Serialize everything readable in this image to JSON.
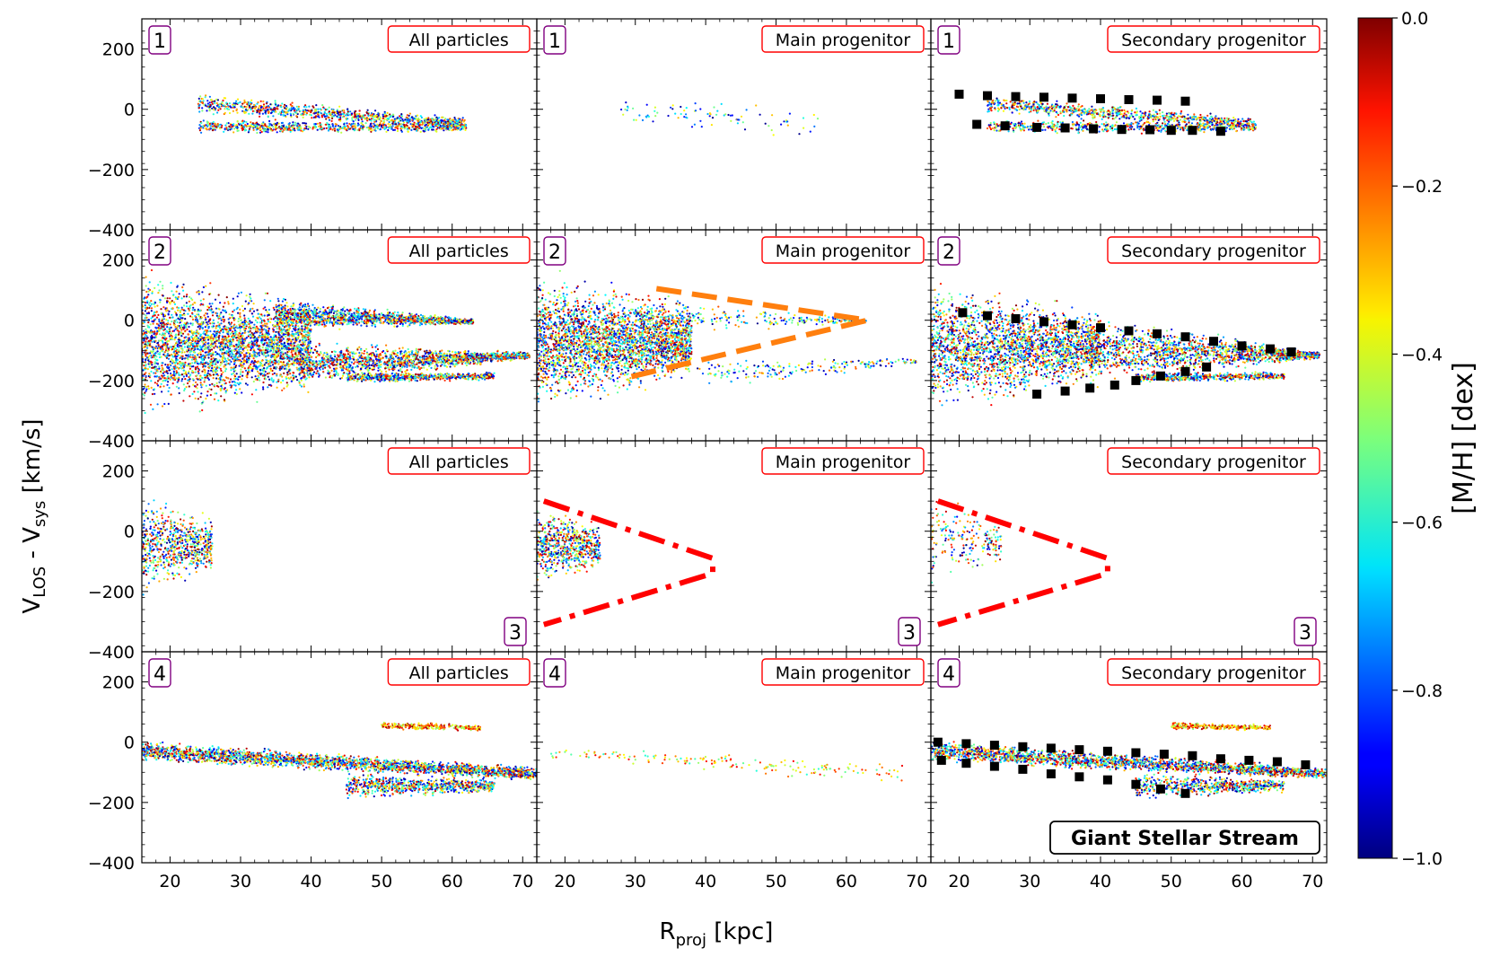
{
  "chart_data": {
    "type": "scatter",
    "figure_title": "",
    "xlabel": "R_proj [kpc]",
    "xlabel_main": "R",
    "xlabel_sub": "proj",
    "xlabel_unit": " [kpc]",
    "ylabel": "V_LOS - V_sys [km/s]",
    "ylabel_v1": "V",
    "ylabel_sub1": "LOS",
    "ylabel_mid": " - V",
    "ylabel_sub2": "sys",
    "ylabel_unit": " [km/s]",
    "xlim": [
      16,
      72
    ],
    "ylim": [
      -400,
      300
    ],
    "xticks": [
      20,
      30,
      40,
      50,
      60,
      70
    ],
    "xtick_labels": [
      "20",
      "30",
      "40",
      "50",
      "60",
      "70"
    ],
    "yticks": [
      200,
      0,
      -200,
      -400
    ],
    "ytick_labels": [
      "200",
      "0",
      "−200",
      "−400"
    ],
    "column_titles": [
      "All particles",
      "Main progenitor",
      "Secondary progenitor"
    ],
    "row_labels": [
      "1",
      "2",
      "3",
      "4"
    ],
    "annotation": "Giant Stellar Stream",
    "colorbar": {
      "label": "[M/H] [dex]",
      "range": [
        -1.0,
        0.0
      ],
      "ticks": [
        0.0,
        -0.2,
        -0.4,
        -0.6,
        -0.8,
        -1.0
      ],
      "tick_labels": [
        "0.0",
        "−0.2",
        "−0.4",
        "−0.6",
        "−0.8",
        "−1.0"
      ],
      "colormap": "jet"
    },
    "marker_colors": {
      "orange_dash": "#ff7f0e",
      "red_dashdot": "#ff0000",
      "black_squares": "#000000",
      "tag_border_number": "#800080",
      "tag_border_title": "#ff0000"
    },
    "panels": [
      {
        "row": 1,
        "col": 1,
        "title": "All particles",
        "tag": "1",
        "clouds": [
          {
            "n": 900,
            "x0": 24,
            "x1": 62,
            "yTop0": 55,
            "yTop1": -25,
            "yBot0": -20,
            "yBot1": -70,
            "mh": [
              -1,
              0
            ]
          },
          {
            "n": 700,
            "x0": 24,
            "x1": 62,
            "yTop0": -30,
            "yTop1": -40,
            "yBot0": -85,
            "yBot1": -80,
            "mh": [
              -1,
              0
            ]
          }
        ]
      },
      {
        "row": 1,
        "col": 2,
        "title": "Main progenitor",
        "tag": "1",
        "clouds": [
          {
            "n": 90,
            "x0": 28,
            "x1": 56,
            "yTop0": 40,
            "yTop1": 20,
            "yBot0": -60,
            "yBot1": -110,
            "mh": [
              -1,
              -0.3
            ]
          }
        ]
      },
      {
        "row": 1,
        "col": 3,
        "title": "Secondary progenitor",
        "tag": "1",
        "clouds": [
          {
            "n": 800,
            "x0": 24,
            "x1": 62,
            "yTop0": 55,
            "yTop1": -25,
            "yBot0": -20,
            "yBot1": -70,
            "mh": [
              -1,
              0
            ]
          },
          {
            "n": 600,
            "x0": 24,
            "x1": 62,
            "yTop0": -30,
            "yTop1": -40,
            "yBot0": -85,
            "yBot1": -80,
            "mh": [
              -1,
              0
            ]
          }
        ],
        "squares": [
          [
            20,
            50
          ],
          [
            24,
            45
          ],
          [
            28,
            42
          ],
          [
            32,
            40
          ],
          [
            36,
            37
          ],
          [
            40,
            35
          ],
          [
            44,
            32
          ],
          [
            48,
            30
          ],
          [
            52,
            27
          ],
          [
            22.5,
            -50
          ],
          [
            26.5,
            -55
          ],
          [
            31,
            -60
          ],
          [
            35,
            -62
          ],
          [
            39,
            -65
          ],
          [
            43,
            -67
          ],
          [
            47,
            -68
          ],
          [
            50,
            -70
          ],
          [
            53,
            -70
          ],
          [
            57,
            -73
          ]
        ]
      },
      {
        "row": 2,
        "col": 1,
        "title": "All particles",
        "tag": "2",
        "clouds": [
          {
            "n": 3200,
            "x0": 16,
            "x1": 40,
            "yTop0": 200,
            "yTop1": 80,
            "yBot0": -350,
            "yBot1": -260,
            "mh": [
              -1,
              0
            ]
          },
          {
            "n": 1400,
            "x0": 35,
            "x1": 63,
            "yTop0": 80,
            "yTop1": 5,
            "yBot0": -40,
            "yBot1": -15,
            "mh": [
              -1,
              0
            ]
          },
          {
            "n": 1600,
            "x0": 38,
            "x1": 71,
            "yTop0": -60,
            "yTop1": -105,
            "yBot0": -230,
            "yBot1": -130,
            "mh": [
              -1,
              0
            ]
          },
          {
            "n": 600,
            "x0": 45,
            "x1": 66,
            "yTop0": -170,
            "yTop1": -170,
            "yBot0": -210,
            "yBot1": -200,
            "mh": [
              -1,
              0
            ]
          }
        ]
      },
      {
        "row": 2,
        "col": 2,
        "title": "Main progenitor",
        "tag": "2",
        "clouds": [
          {
            "n": 3000,
            "x0": 16,
            "x1": 38,
            "yTop0": 190,
            "yTop1": 70,
            "yBot0": -340,
            "yBot1": -200,
            "mh": [
              -1,
              0
            ]
          },
          {
            "n": 250,
            "x0": 30,
            "x1": 63,
            "yTop0": 80,
            "yTop1": 5,
            "yBot0": -60,
            "yBot1": -10,
            "mh": [
              -1,
              -0.2
            ]
          },
          {
            "n": 200,
            "x0": 38,
            "x1": 70,
            "yTop0": -120,
            "yTop1": -120,
            "yBot0": -240,
            "yBot1": -150,
            "mh": [
              -1,
              -0.2
            ]
          }
        ],
        "dash_lines": [
          {
            "color": "orange",
            "pts": [
              [
                33,
                105
              ],
              [
                63,
                0
              ],
              [
                28,
                -195
              ]
            ]
          }
        ]
      },
      {
        "row": 2,
        "col": 3,
        "title": "Secondary progenitor",
        "tag": "2",
        "clouds": [
          {
            "n": 2400,
            "x0": 16,
            "x1": 40,
            "yTop0": 150,
            "yTop1": 60,
            "yBot0": -330,
            "yBot1": -240,
            "mh": [
              -1,
              0
            ]
          },
          {
            "n": 1600,
            "x0": 38,
            "x1": 71,
            "yTop0": 40,
            "yTop1": -105,
            "yBot0": -230,
            "yBot1": -130,
            "mh": [
              -1,
              0
            ]
          },
          {
            "n": 500,
            "x0": 45,
            "x1": 66,
            "yTop0": -170,
            "yTop1": -170,
            "yBot0": -210,
            "yBot1": -200,
            "mh": [
              -1,
              0
            ]
          }
        ],
        "squares": [
          [
            20.5,
            25
          ],
          [
            24,
            15
          ],
          [
            28,
            5
          ],
          [
            32,
            -5
          ],
          [
            36,
            -15
          ],
          [
            40,
            -25
          ],
          [
            44,
            -35
          ],
          [
            48,
            -45
          ],
          [
            52,
            -55
          ],
          [
            56,
            -70
          ],
          [
            60,
            -85
          ],
          [
            64,
            -95
          ],
          [
            67,
            -105
          ],
          [
            31,
            -245
          ],
          [
            35,
            -235
          ],
          [
            38.5,
            -225
          ],
          [
            42,
            -215
          ],
          [
            45,
            -200
          ],
          [
            48.5,
            -185
          ],
          [
            52,
            -170
          ],
          [
            55,
            -155
          ]
        ]
      },
      {
        "row": 3,
        "col": 1,
        "title": "All particles",
        "tag": "3",
        "clouds": [
          {
            "n": 700,
            "x0": 16,
            "x1": 26,
            "yTop0": 140,
            "yTop1": 60,
            "yBot0": -230,
            "yBot1": -150,
            "mh": [
              -1,
              0
            ]
          }
        ]
      },
      {
        "row": 3,
        "col": 2,
        "title": "Main progenitor",
        "tag": "3",
        "clouds": [
          {
            "n": 650,
            "x0": 16,
            "x1": 25,
            "yTop0": 110,
            "yTop1": 40,
            "yBot0": -200,
            "yBot1": -140,
            "mh": [
              -1,
              0
            ]
          }
        ],
        "dash_lines": [
          {
            "color": "red",
            "pts": [
              [
                17,
                100
              ],
              [
                41,
                -90
              ],
              [
                41,
                -140
              ],
              [
                17,
                -310
              ]
            ]
          }
        ]
      },
      {
        "row": 3,
        "col": 3,
        "title": "Secondary progenitor",
        "tag": "3",
        "clouds": [
          {
            "n": 200,
            "x0": 16,
            "x1": 26,
            "yTop0": 160,
            "yTop1": 20,
            "yBot0": -200,
            "yBot1": -110,
            "mh": [
              -1,
              0
            ]
          }
        ],
        "dash_lines": [
          {
            "color": "red",
            "pts": [
              [
                17,
                100
              ],
              [
                41,
                -90
              ],
              [
                41,
                -140
              ],
              [
                17,
                -310
              ]
            ]
          }
        ]
      },
      {
        "row": 4,
        "col": 1,
        "title": "All particles",
        "tag": "4",
        "clouds": [
          {
            "n": 2400,
            "x0": 16,
            "x1": 72,
            "yTop0": 10,
            "yTop1": -80,
            "yBot0": -70,
            "yBot1": -130,
            "mh": [
              -1,
              0
            ]
          },
          {
            "n": 700,
            "x0": 45,
            "x1": 66,
            "yTop0": -90,
            "yTop1": -120,
            "yBot0": -200,
            "yBot1": -170,
            "mh": [
              -1,
              0
            ]
          },
          {
            "n": 250,
            "x0": 50,
            "x1": 64,
            "yTop0": 70,
            "yTop1": 60,
            "yBot0": 40,
            "yBot1": 35,
            "mh": [
              -0.5,
              0
            ]
          }
        ]
      },
      {
        "row": 4,
        "col": 2,
        "title": "Main progenitor",
        "tag": "4",
        "clouds": [
          {
            "n": 170,
            "x0": 18,
            "x1": 69,
            "yTop0": -10,
            "yTop1": -60,
            "yBot0": -60,
            "yBot1": -150,
            "mh": [
              -0.6,
              -0.1
            ]
          }
        ]
      },
      {
        "row": 4,
        "col": 3,
        "title": "Secondary progenitor",
        "tag": "4",
        "clouds": [
          {
            "n": 2200,
            "x0": 16,
            "x1": 72,
            "yTop0": 10,
            "yTop1": -80,
            "yBot0": -70,
            "yBot1": -130,
            "mh": [
              -1,
              0
            ]
          },
          {
            "n": 600,
            "x0": 45,
            "x1": 66,
            "yTop0": -90,
            "yTop1": -120,
            "yBot0": -200,
            "yBot1": -170,
            "mh": [
              -1,
              0
            ]
          },
          {
            "n": 250,
            "x0": 50,
            "x1": 64,
            "yTop0": 70,
            "yTop1": 60,
            "yBot0": 40,
            "yBot1": 35,
            "mh": [
              -0.5,
              0
            ]
          }
        ],
        "squares": [
          [
            17,
            0
          ],
          [
            21,
            -5
          ],
          [
            25,
            -10
          ],
          [
            29,
            -15
          ],
          [
            33,
            -20
          ],
          [
            37,
            -25
          ],
          [
            41,
            -30
          ],
          [
            45,
            -35
          ],
          [
            49,
            -40
          ],
          [
            53,
            -45
          ],
          [
            57,
            -55
          ],
          [
            61,
            -60
          ],
          [
            65,
            -65
          ],
          [
            69,
            -75
          ],
          [
            17.5,
            -60
          ],
          [
            21,
            -70
          ],
          [
            25,
            -80
          ],
          [
            29,
            -90
          ],
          [
            33,
            -105
          ],
          [
            37,
            -115
          ],
          [
            41,
            -125
          ],
          [
            45,
            -140
          ],
          [
            48.5,
            -155
          ],
          [
            52,
            -170
          ]
        ]
      }
    ]
  }
}
